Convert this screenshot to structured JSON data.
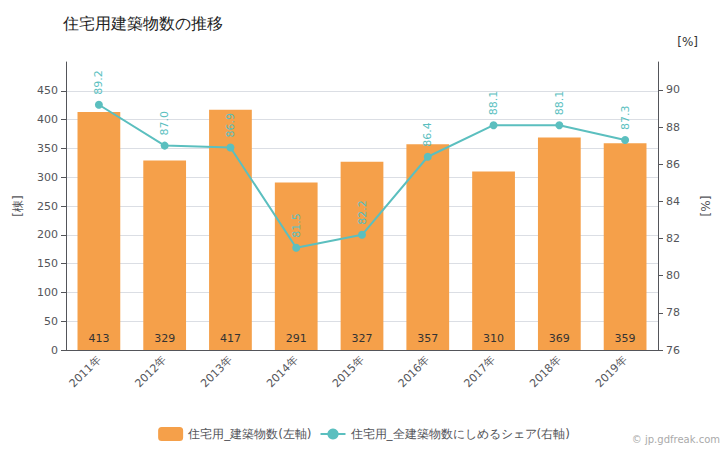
{
  "chart_data": {
    "type": "bar",
    "title": "住宅用建築物数の推移",
    "categories": [
      "2011年",
      "2012年",
      "2013年",
      "2014年",
      "2015年",
      "2016年",
      "2017年",
      "2018年",
      "2019年"
    ],
    "series": [
      {
        "name": "住宅用_建築物数(左軸)",
        "type": "bar",
        "color": "#f5a04a",
        "values": [
          413,
          329,
          417,
          291,
          327,
          357,
          310,
          369,
          359
        ]
      },
      {
        "name": "住宅用_全建築物数にしめるシェア(右軸)",
        "type": "line",
        "axis": "y2",
        "color": "#5bbfbf",
        "marker": "circle",
        "values": [
          89.2,
          87.0,
          86.9,
          81.5,
          82.2,
          86.4,
          88.1,
          88.1,
          87.3
        ],
        "value_labels": [
          "89.2",
          "87.0",
          "86.9",
          "81.5",
          "82.2",
          "86.4",
          "88.1",
          "88.1",
          "87.3"
        ]
      }
    ],
    "y_label": "[棟]",
    "y2_label": "[%]",
    "ylim": [
      0,
      500
    ],
    "yticks": [
      0,
      50,
      100,
      150,
      200,
      250,
      300,
      350,
      400,
      450
    ],
    "y2lim": [
      76.0,
      91.5
    ],
    "y2ticks": [
      76.0,
      78.0,
      80.0,
      82.0,
      84.0,
      86.0,
      88.0,
      90.0
    ],
    "annotations": [
      "[%]",
      "© jp.gdfreak.com"
    ],
    "grid": true,
    "legend": "bottom",
    "data_labels": true
  }
}
